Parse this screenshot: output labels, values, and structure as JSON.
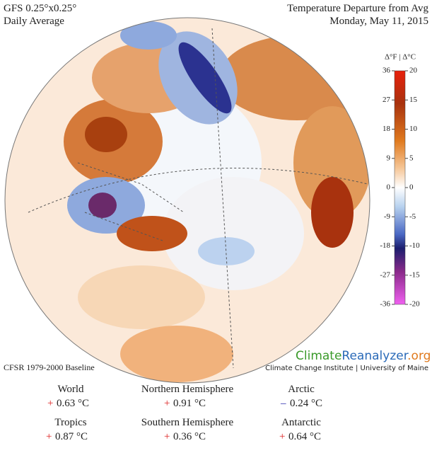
{
  "header": {
    "model": "GFS 0.25°x0.25°",
    "period": "Daily Average",
    "title": "Temperature Departure from Avg",
    "date": "Monday, May 11, 2015"
  },
  "colorbar": {
    "unit_header": "Δ°F | Δ°C",
    "f_ticks": [
      36,
      27,
      18,
      9,
      0,
      -9,
      -18,
      -27,
      -36
    ],
    "c_ticks": [
      20,
      15,
      10,
      5,
      0,
      -5,
      -10,
      -15,
      -20
    ]
  },
  "footer": {
    "baseline": "CFSR 1979-2000 Baseline",
    "brand": [
      "Climate",
      "Reanalyzer",
      ".org"
    ],
    "institute": "Climate Change Institute | University of Maine"
  },
  "stats": [
    {
      "name": "World",
      "sign": "+",
      "value": "0.63 °C"
    },
    {
      "name": "Northern Hemisphere",
      "sign": "+",
      "value": "0.91 °C"
    },
    {
      "name": "Arctic",
      "sign": "–",
      "value": "0.24 °C"
    },
    {
      "name": "Tropics",
      "sign": "+",
      "value": "0.87 °C"
    },
    {
      "name": "Southern Hemisphere",
      "sign": "+",
      "value": "0.36 °C"
    },
    {
      "name": "Antarctic",
      "sign": "+",
      "value": "0.64 °C"
    }
  ]
}
